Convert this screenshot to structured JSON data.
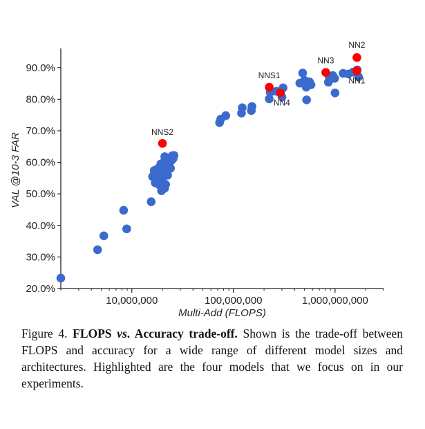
{
  "chart_data": {
    "type": "scatter",
    "xlabel": "Multi-Add (FLOPS)",
    "ylabel": "VAL @10-3 FAR",
    "x_scale": "log",
    "xlim": [
      2000000,
      3000000000
    ],
    "ylim": [
      20,
      95
    ],
    "x_ticks": [
      10000000,
      100000000,
      1000000000
    ],
    "x_tick_labels": [
      "10,000,000",
      "100,000,000",
      "1,000,000,000"
    ],
    "y_ticks": [
      20,
      30,
      40,
      50,
      60,
      70,
      80,
      90
    ],
    "y_tick_labels": [
      "20.0%",
      "30.0%",
      "40.0%",
      "50.0%",
      "60.0%",
      "70.0%",
      "80.0%",
      "90.0%"
    ],
    "grid": false,
    "colors": {
      "other": "#3a6bcc",
      "highlighted": "#ff0000"
    },
    "series": [
      {
        "role": "other",
        "points": [
          [
            2000000,
            23.3
          ],
          [
            4600000,
            32.3
          ],
          [
            5300000,
            36.7
          ],
          [
            8300000,
            44.8
          ],
          [
            8900000,
            38.9
          ],
          [
            15500000,
            47.5
          ],
          [
            16000000,
            55.5
          ],
          [
            16600000,
            57.4
          ],
          [
            17000000,
            53.5
          ],
          [
            17500000,
            56.3
          ],
          [
            18000000,
            58.0
          ],
          [
            18300000,
            54.5
          ],
          [
            18700000,
            52.8
          ],
          [
            19000000,
            57.0
          ],
          [
            19300000,
            59.5
          ],
          [
            19600000,
            51.0
          ],
          [
            20000000,
            54.8
          ],
          [
            20200000,
            56.7
          ],
          [
            20500000,
            58.4
          ],
          [
            20800000,
            60.2
          ],
          [
            21100000,
            61.8
          ],
          [
            21500000,
            53.0
          ],
          [
            21800000,
            57.5
          ],
          [
            22200000,
            59.0
          ],
          [
            22600000,
            60.5
          ],
          [
            23000000,
            58.8
          ],
          [
            23400000,
            60.9
          ],
          [
            23900000,
            61.5
          ],
          [
            24400000,
            60.5
          ],
          [
            25000000,
            62.1
          ],
          [
            25500000,
            61.2
          ],
          [
            26000000,
            62.2
          ],
          [
            21000000,
            51.8
          ],
          [
            22500000,
            55.9
          ],
          [
            24000000,
            58.1
          ],
          [
            73000000,
            72.6
          ],
          [
            75000000,
            73.7
          ],
          [
            84000000,
            74.8
          ],
          [
            120000000,
            75.6
          ],
          [
            122000000,
            77.3
          ],
          [
            150000000,
            76.4
          ],
          [
            152000000,
            77.7
          ],
          [
            225000000,
            80.1
          ],
          [
            230000000,
            82.2
          ],
          [
            265000000,
            82.5
          ],
          [
            300000000,
            80.7
          ],
          [
            308000000,
            83.6
          ],
          [
            450000000,
            85.1
          ],
          [
            500000000,
            86.0
          ],
          [
            520000000,
            83.8
          ],
          [
            480000000,
            88.3
          ],
          [
            525000000,
            79.8
          ],
          [
            560000000,
            85.5
          ],
          [
            580000000,
            84.6
          ],
          [
            860000000,
            85.4
          ],
          [
            880000000,
            86.8
          ],
          [
            950000000,
            87.5
          ],
          [
            990000000,
            86.6
          ],
          [
            1000000000,
            82.0
          ],
          [
            1200000000,
            88.2
          ],
          [
            1350000000,
            88.0
          ],
          [
            1500000000,
            88.6
          ],
          [
            1650000000,
            89.3
          ],
          [
            1700000000,
            87.1
          ]
        ]
      },
      {
        "role": "highlighted",
        "points": [
          {
            "label": "NNS2",
            "x": 20000000,
            "y": 66.0
          },
          {
            "label": "NNS1",
            "x": 225000000,
            "y": 83.8
          },
          {
            "label": "NN4",
            "x": 290000000,
            "y": 82.0
          },
          {
            "label": "NN3",
            "x": 810000000,
            "y": 88.5
          },
          {
            "label": "NN2",
            "x": 1640000000,
            "y": 93.2
          },
          {
            "label": "NN1",
            "x": 1640000000,
            "y": 89.0
          }
        ]
      }
    ]
  },
  "caption": {
    "prefix": "Figure 4. ",
    "bold1": "FLOPS ",
    "italic_vs": "vs",
    "bold2": ". Accuracy trade-off.",
    "body": " Shown is the trade-off between FLOPS and accuracy for a wide range of different model sizes and architectures. Highlighted are the four models that we focus on in our experiments."
  }
}
